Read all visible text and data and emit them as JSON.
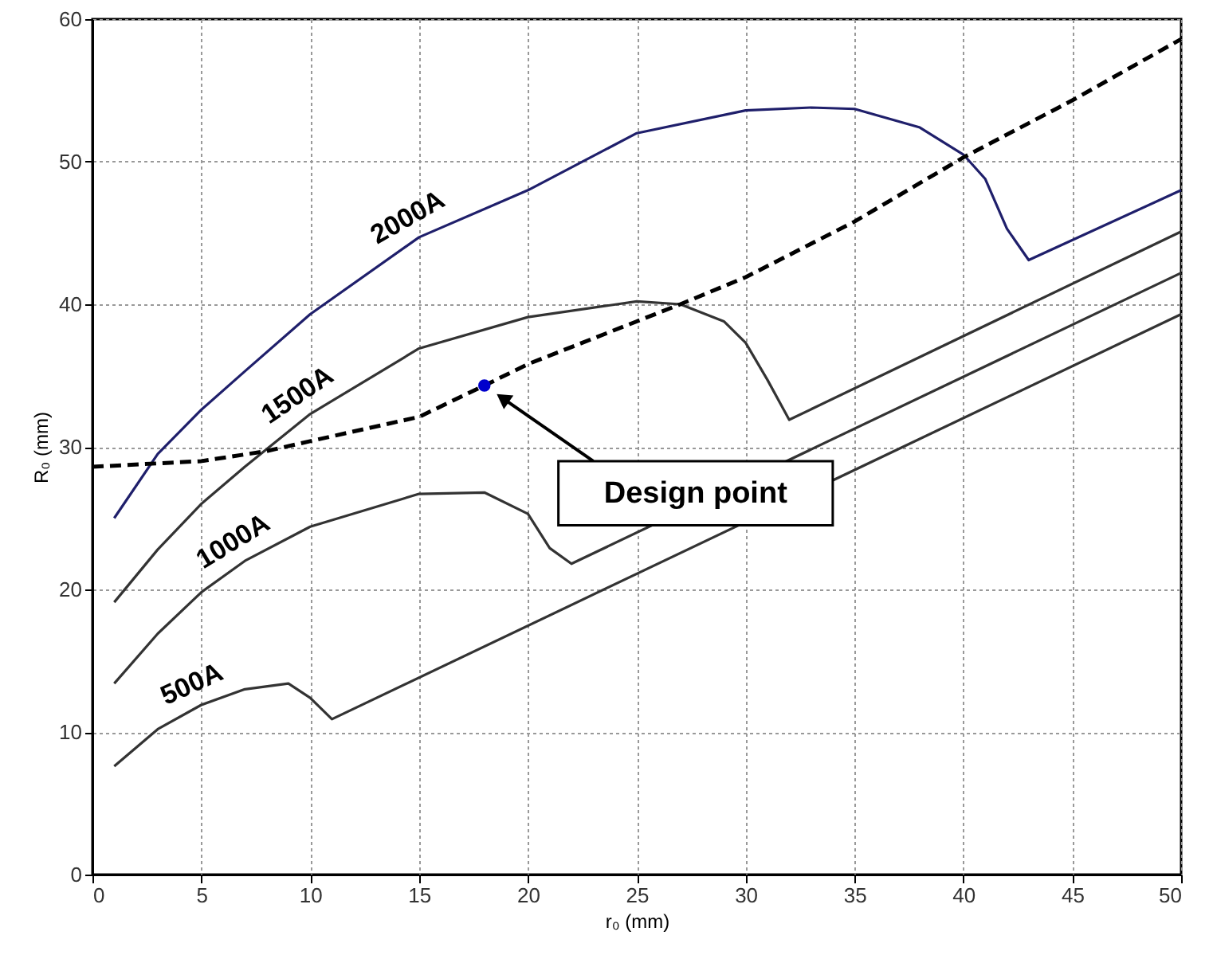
{
  "chart_data": {
    "type": "line",
    "xlabel": "r₀ (mm)",
    "ylabel": "R₀ (mm)",
    "xlim": [
      0,
      50
    ],
    "ylim": [
      0,
      60
    ],
    "xticks": [
      0,
      5,
      10,
      15,
      20,
      25,
      30,
      35,
      40,
      45,
      50
    ],
    "yticks": [
      0,
      10,
      20,
      30,
      40,
      50,
      60
    ],
    "grid": true,
    "series": [
      {
        "name": "2000A",
        "color": "#1f1f6b",
        "x": [
          1,
          3,
          5,
          7,
          10,
          15,
          20,
          25,
          30,
          33,
          35,
          38,
          40,
          41,
          42,
          43,
          50
        ],
        "values": [
          25.0,
          29.5,
          32.6,
          35.3,
          39.3,
          44.7,
          48.0,
          52.0,
          53.6,
          53.8,
          53.7,
          52.4,
          50.5,
          48.8,
          45.3,
          43.1,
          48.0
        ]
      },
      {
        "name": "1500A",
        "color": "#333333",
        "x": [
          1,
          3,
          5,
          7,
          10,
          15,
          20,
          25,
          27,
          29,
          30,
          31,
          32,
          50
        ],
        "values": [
          19.1,
          22.8,
          26.0,
          28.6,
          32.3,
          36.9,
          39.1,
          40.2,
          40.0,
          38.8,
          37.3,
          34.7,
          31.9,
          45.1
        ]
      },
      {
        "name": "1000A",
        "color": "#333333",
        "x": [
          1,
          3,
          5,
          7,
          10,
          15,
          18,
          20,
          21,
          22,
          50
        ],
        "values": [
          13.4,
          16.9,
          19.8,
          22.0,
          24.4,
          26.7,
          26.8,
          25.3,
          22.9,
          21.8,
          42.2
        ]
      },
      {
        "name": "500A",
        "color": "#333333",
        "x": [
          1,
          3,
          5,
          7,
          9,
          10,
          11,
          50
        ],
        "values": [
          7.6,
          10.2,
          11.9,
          13.0,
          13.4,
          12.4,
          10.9,
          39.3
        ]
      },
      {
        "color": "#000000",
        "line_style": "dashed",
        "x": [
          0,
          5,
          8,
          10,
          15,
          18,
          20,
          25,
          27,
          30,
          35,
          40,
          45,
          50
        ],
        "values": [
          28.6,
          29.0,
          29.7,
          30.4,
          32.1,
          34.3,
          35.8,
          38.8,
          40.0,
          41.9,
          45.8,
          50.3,
          54.3,
          58.6
        ]
      },
      {
        "type": "scatter",
        "marker": "circle",
        "color": "#0000cc",
        "x": [
          18
        ],
        "values": [
          34.3
        ]
      }
    ],
    "annotations": [
      "Design point"
    ]
  }
}
